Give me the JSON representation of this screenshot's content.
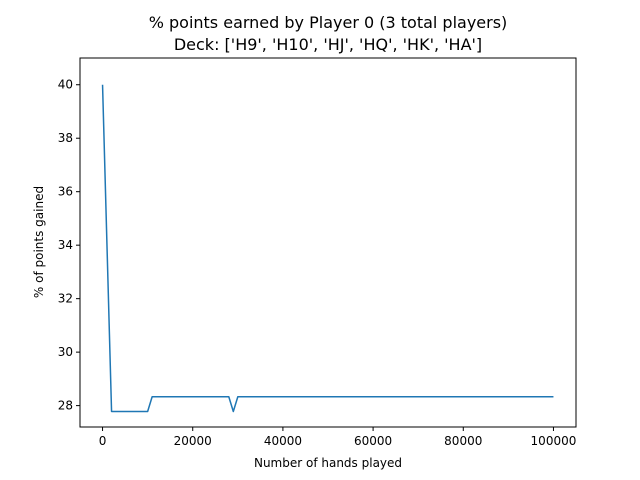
{
  "chart_data": {
    "type": "line",
    "title_line1": "% points earned by Player 0 (3 total players)",
    "title_line2": "Deck: ['H9', 'H10', 'HJ', 'HQ', 'HK', 'HA']",
    "xlabel": "Number of hands played",
    "ylabel": "% of points gained",
    "xlim": [
      -5000,
      105000
    ],
    "ylim": [
      27.2,
      41.0
    ],
    "x_ticks": [
      0,
      20000,
      40000,
      60000,
      80000,
      100000
    ],
    "x_tick_labels": [
      "0",
      "20000",
      "40000",
      "60000",
      "80000",
      "100000"
    ],
    "y_ticks": [
      28,
      30,
      32,
      34,
      36,
      38,
      40
    ],
    "y_tick_labels": [
      "28",
      "30",
      "32",
      "34",
      "36",
      "38",
      "40"
    ],
    "grid": false,
    "line_color": "#1f77b4",
    "series": [
      {
        "x": [
          0,
          2000,
          10000,
          11000,
          28000,
          29000,
          30000,
          100000
        ],
        "y": [
          40.0,
          27.78,
          27.78,
          28.33,
          28.33,
          27.78,
          28.33,
          28.33
        ]
      }
    ]
  }
}
